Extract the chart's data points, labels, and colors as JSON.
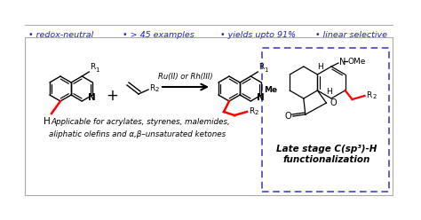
{
  "bg_color": "#ffffff",
  "outer_box_color": "#aaaaaa",
  "dashed_box_color": "#3333bb",
  "bullet_color": "#2222cc",
  "bullet_items": [
    "• redox-neutral",
    "• > 45 examples",
    "• yields upto 91%",
    "• linear selective"
  ],
  "bullet_fontsize": 6.8,
  "arrow_label": "Ru(II) or Rh(III)",
  "italic_text_line1": "Applicable for acrylates, styrenes, malemides,",
  "italic_text_line2": "aliphatic olefins and α,β–unsaturated ketones",
  "late_stage_line1": "Late stage C(sp³)-H",
  "late_stage_line2": "functionalization"
}
